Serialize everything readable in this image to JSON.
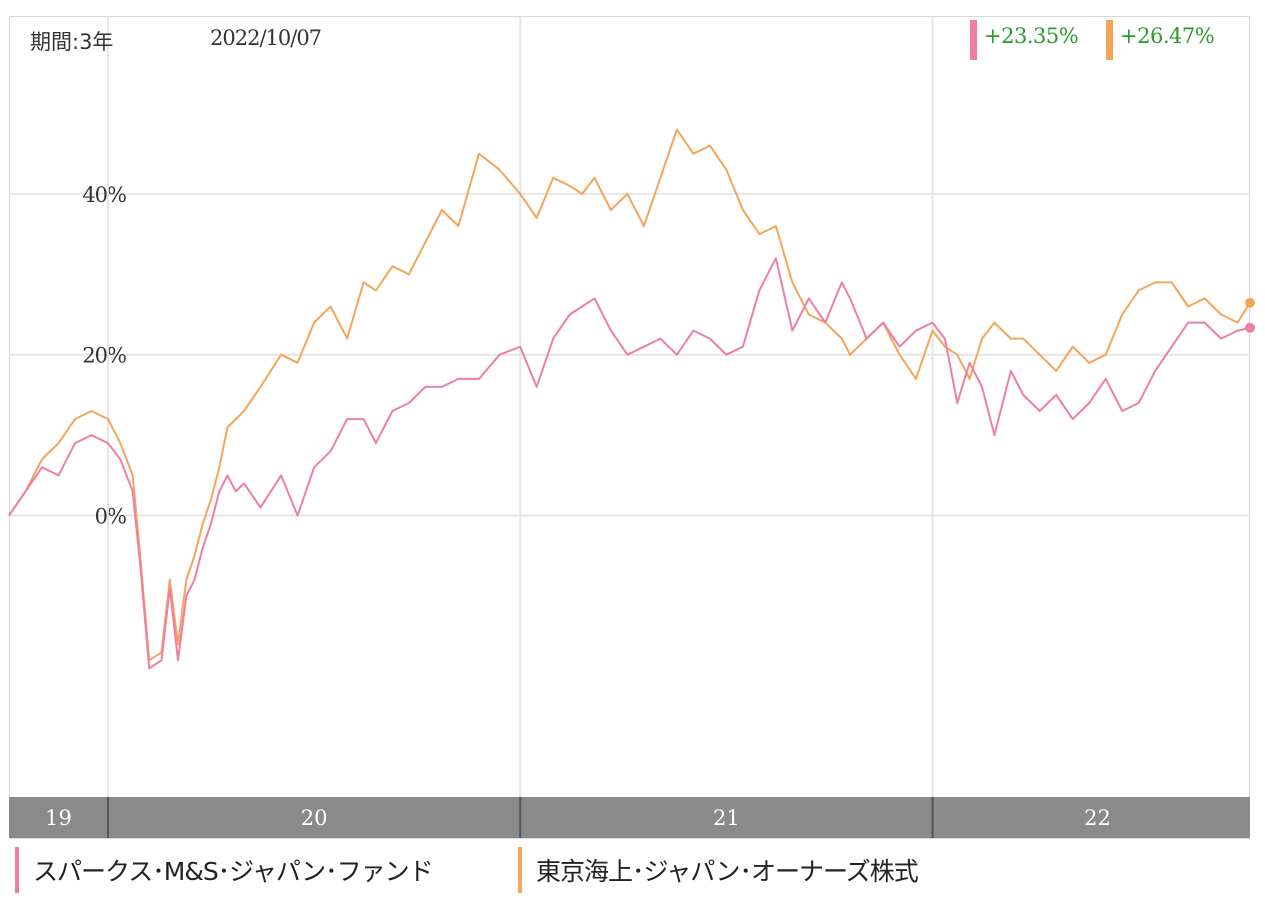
{
  "header": {
    "period_label": "期間:3年",
    "date": "2022/10/07"
  },
  "colors": {
    "series1": "#ee7fa4",
    "series2": "#f5a55a",
    "return_text": "#2a9a2a"
  },
  "chart_data": {
    "type": "line",
    "title": "",
    "xlabel": "",
    "ylabel": "",
    "ylim": [
      -35,
      62
    ],
    "xlim": [
      2019.76,
      2022.77
    ],
    "y_ticks": [
      0,
      20,
      40
    ],
    "y_tick_labels": [
      "0%",
      "20%",
      "40%"
    ],
    "x_axis_labels": [
      "19",
      "20",
      "21",
      "22"
    ],
    "x_axis_label_positions": [
      2019.88,
      2020.5,
      2021.5,
      2022.4
    ],
    "x_year_starts": [
      2020.0,
      2021.0,
      2022.0
    ],
    "grid": true,
    "legend": "bottom",
    "series": [
      {
        "name": "スパークス･M&S･ジャパン･ファンド",
        "final_return": "+23.35%",
        "x": [
          2019.76,
          2019.8,
          2019.84,
          2019.88,
          2019.92,
          2019.96,
          2020.0,
          2020.03,
          2020.06,
          2020.08,
          2020.1,
          2020.13,
          2020.15,
          2020.17,
          2020.19,
          2020.21,
          2020.23,
          2020.25,
          2020.27,
          2020.29,
          2020.31,
          2020.33,
          2020.37,
          2020.42,
          2020.46,
          2020.5,
          2020.54,
          2020.58,
          2020.62,
          2020.65,
          2020.69,
          2020.73,
          2020.77,
          2020.81,
          2020.85,
          2020.9,
          2020.95,
          2021.0,
          2021.04,
          2021.08,
          2021.12,
          2021.15,
          2021.18,
          2021.22,
          2021.26,
          2021.3,
          2021.34,
          2021.38,
          2021.42,
          2021.46,
          2021.5,
          2021.54,
          2021.58,
          2021.62,
          2021.66,
          2021.7,
          2021.74,
          2021.78,
          2021.8,
          2021.84,
          2021.88,
          2021.92,
          2021.96,
          2022.0,
          2022.03,
          2022.06,
          2022.09,
          2022.12,
          2022.15,
          2022.19,
          2022.22,
          2022.26,
          2022.3,
          2022.34,
          2022.38,
          2022.42,
          2022.46,
          2022.5,
          2022.54,
          2022.58,
          2022.62,
          2022.66,
          2022.7,
          2022.74,
          2022.77
        ],
        "values": [
          0,
          3,
          6,
          5,
          9,
          10,
          9,
          7,
          3,
          -7,
          -19,
          -18,
          -9,
          -18,
          -10,
          -8,
          -4,
          -1,
          3,
          5,
          3,
          4,
          1,
          5,
          0,
          6,
          8,
          12,
          12,
          9,
          13,
          14,
          16,
          16,
          17,
          17,
          20,
          21,
          16,
          22,
          25,
          26,
          27,
          23,
          20,
          21,
          22,
          20,
          23,
          22,
          20,
          21,
          28,
          32,
          23,
          27,
          24,
          29,
          27,
          22,
          24,
          21,
          23,
          24,
          22,
          14,
          19,
          16,
          10,
          18,
          15,
          13,
          15,
          12,
          14,
          17,
          13,
          14,
          18,
          21,
          24,
          24,
          22,
          23,
          23.35
        ]
      },
      {
        "name": "東京海上･ジャパン･オーナーズ株式",
        "final_return": "+26.47%",
        "x": [
          2019.76,
          2019.8,
          2019.84,
          2019.88,
          2019.92,
          2019.96,
          2020.0,
          2020.03,
          2020.06,
          2020.08,
          2020.1,
          2020.13,
          2020.15,
          2020.17,
          2020.19,
          2020.21,
          2020.23,
          2020.25,
          2020.27,
          2020.29,
          2020.31,
          2020.33,
          2020.37,
          2020.42,
          2020.46,
          2020.5,
          2020.54,
          2020.58,
          2020.62,
          2020.65,
          2020.69,
          2020.73,
          2020.77,
          2020.81,
          2020.85,
          2020.9,
          2020.95,
          2021.0,
          2021.04,
          2021.08,
          2021.12,
          2021.15,
          2021.18,
          2021.22,
          2021.26,
          2021.3,
          2021.34,
          2021.38,
          2021.42,
          2021.46,
          2021.5,
          2021.54,
          2021.58,
          2021.62,
          2021.66,
          2021.7,
          2021.74,
          2021.78,
          2021.8,
          2021.84,
          2021.88,
          2021.92,
          2021.96,
          2022.0,
          2022.03,
          2022.06,
          2022.09,
          2022.12,
          2022.15,
          2022.19,
          2022.22,
          2022.26,
          2022.3,
          2022.34,
          2022.38,
          2022.42,
          2022.46,
          2022.5,
          2022.54,
          2022.58,
          2022.62,
          2022.66,
          2022.7,
          2022.74,
          2022.77
        ],
        "values": [
          0,
          3,
          7,
          9,
          12,
          13,
          12,
          9,
          5,
          -6,
          -18,
          -17,
          -8,
          -16,
          -8,
          -5,
          -1,
          2,
          6,
          11,
          12,
          13,
          16,
          20,
          19,
          24,
          26,
          22,
          29,
          28,
          31,
          30,
          34,
          38,
          36,
          45,
          43,
          40,
          37,
          42,
          41,
          40,
          42,
          38,
          40,
          36,
          42,
          48,
          45,
          46,
          43,
          38,
          35,
          36,
          29,
          25,
          24,
          22,
          20,
          22,
          24,
          20,
          17,
          23,
          21,
          20,
          17,
          22,
          24,
          22,
          22,
          20,
          18,
          21,
          19,
          20,
          25,
          28,
          29,
          29,
          26,
          27,
          25,
          24,
          26.47
        ]
      }
    ]
  }
}
